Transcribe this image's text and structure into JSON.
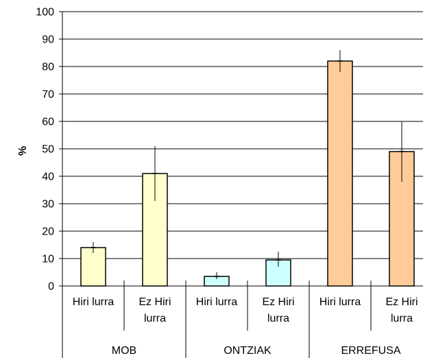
{
  "chart_data": {
    "type": "bar",
    "ylabel": "%",
    "ylim": [
      0,
      100
    ],
    "yticks": [
      0,
      10,
      20,
      30,
      40,
      50,
      60,
      70,
      80,
      90,
      100
    ],
    "grid": true,
    "groups": [
      "MOB",
      "ONTZIAK",
      "ERREFUSA"
    ],
    "bars": [
      {
        "group": "MOB",
        "label_lines": [
          "Hiri lurra"
        ],
        "value": 14,
        "err_low": 12,
        "err_high": 16,
        "color": "#ffffcc"
      },
      {
        "group": "MOB",
        "label_lines": [
          "Ez Hiri",
          "lurra"
        ],
        "value": 41,
        "err_low": 31,
        "err_high": 51,
        "color": "#ffffcc"
      },
      {
        "group": "ONTZIAK",
        "label_lines": [
          "Hiri lurra"
        ],
        "value": 3.5,
        "err_low": 2.5,
        "err_high": 5,
        "color": "#ccffff"
      },
      {
        "group": "ONTZIAK",
        "label_lines": [
          "Ez Hiri",
          "lurra"
        ],
        "value": 9.5,
        "err_low": 7,
        "err_high": 12.5,
        "color": "#ccffff"
      },
      {
        "group": "ERREFUSA",
        "label_lines": [
          "Hiri lurra"
        ],
        "value": 82,
        "err_low": 78,
        "err_high": 86,
        "color": "#ffcc99"
      },
      {
        "group": "ERREFUSA",
        "label_lines": [
          "Ez Hiri",
          "lurra"
        ],
        "value": 49,
        "err_low": 38,
        "err_high": 60,
        "color": "#ffcc99"
      }
    ]
  }
}
